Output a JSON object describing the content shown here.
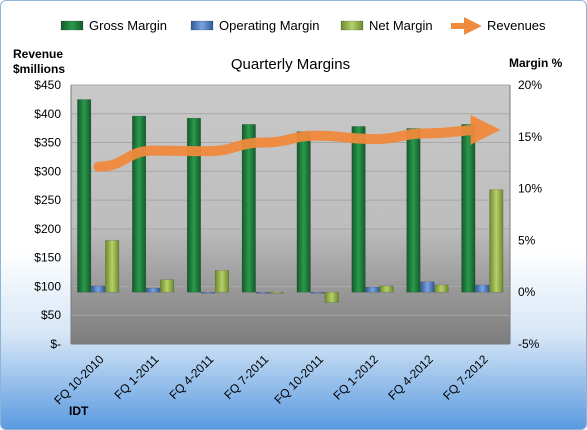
{
  "chart_data": {
    "type": "bar",
    "title": "Quarterly Margins",
    "left_axis_title_line1": "Revenue",
    "left_axis_title_line2": "$millions",
    "right_axis_title": "Margin %",
    "footer_label": "IDT",
    "categories": [
      "FQ 10-2010",
      "FQ 1-2011",
      "FQ 4-2011",
      "FQ 7-2011",
      "FQ 10-2011",
      "FQ 1-2012",
      "FQ 4-2012",
      "FQ 7-2012"
    ],
    "left_axis": {
      "min": 0,
      "max": 450,
      "step": 50,
      "tick_labels": [
        "$-",
        "$50",
        "$100",
        "$150",
        "$200",
        "$250",
        "$300",
        "$350",
        "$400",
        "$450"
      ]
    },
    "right_axis": {
      "min": -5,
      "max": 20,
      "step": 5,
      "tick_labels": [
        "-5%",
        "0%",
        "5%",
        "10%",
        "15%",
        "20%"
      ]
    },
    "series": [
      {
        "name": "Gross Margin",
        "axis": "right",
        "color": "#1e7a3a",
        "values": [
          18.6,
          17.0,
          16.8,
          16.2,
          15.5,
          16.0,
          15.8,
          16.2
        ]
      },
      {
        "name": "Operating Margin",
        "axis": "right",
        "color": "#4f7fc6",
        "values": [
          0.6,
          0.4,
          0.0,
          -0.1,
          -0.1,
          0.5,
          1.0,
          0.7
        ]
      },
      {
        "name": "Net Margin",
        "axis": "right",
        "color": "#97b84f",
        "values": [
          5.0,
          1.2,
          2.1,
          -0.1,
          -1.0,
          0.6,
          0.7,
          9.9
        ]
      },
      {
        "name": "Revenues",
        "axis": "left",
        "color": "#f08a3c",
        "values": [
          308,
          336,
          335,
          350,
          362,
          356,
          366,
          372
        ]
      }
    ],
    "legend_position": "top",
    "grid": true
  }
}
